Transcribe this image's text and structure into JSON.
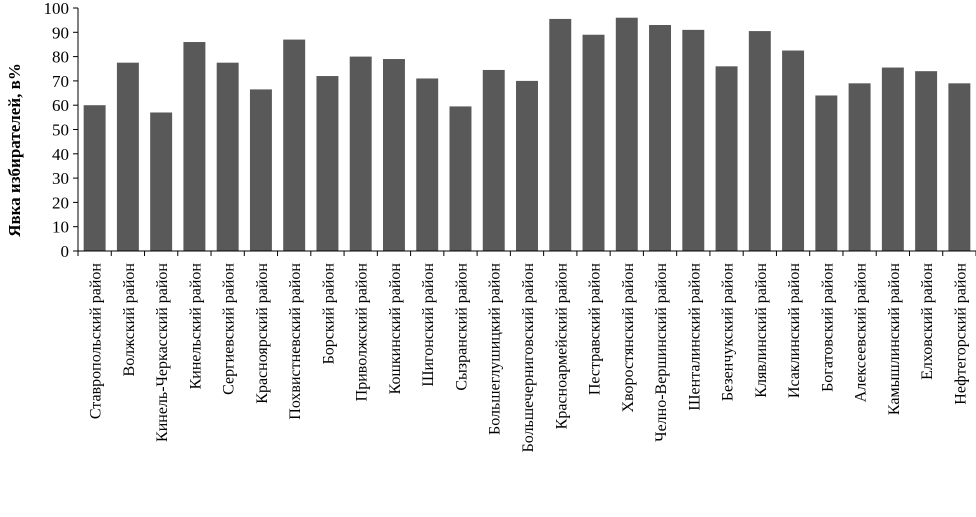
{
  "chart_data": {
    "type": "bar",
    "title": "",
    "xlabel": "",
    "ylabel": "Явка избирателей, в%",
    "ylim": [
      0,
      100
    ],
    "yticks": [
      0,
      10,
      20,
      30,
      40,
      50,
      60,
      70,
      80,
      90,
      100
    ],
    "grid": false,
    "legend": "none",
    "bar_color": "#595959",
    "categories": [
      "Ставропольский район",
      "Волжский район",
      "Кинель-Черкасский район",
      "Кинельский район",
      "Сергиевский район",
      "Красноярский район",
      "Похвистневский район",
      "Борский район",
      "Приволжский район",
      "Кошкинский район",
      "Шигонский район",
      "Сызранский район",
      "Большеглушицкий район",
      "Большечерниговский район",
      "Красноармейский район",
      "Пестравский район",
      "Хворостянский район",
      "Челно-Вершинский район",
      "Шенталинский район",
      "Безенчукский район",
      "Клявлинский район",
      "Исаклинский район",
      "Богатовский район",
      "Алексеевский район",
      "Камышлинский район",
      "Елховский район",
      "Нефтегорский район"
    ],
    "values": [
      60,
      77.5,
      57,
      86,
      77.5,
      66.5,
      87,
      72,
      80,
      79,
      71,
      59.5,
      74.5,
      70,
      95.5,
      89,
      96,
      93,
      91,
      76,
      90.5,
      82.5,
      64,
      69,
      75.5,
      74,
      69
    ]
  }
}
